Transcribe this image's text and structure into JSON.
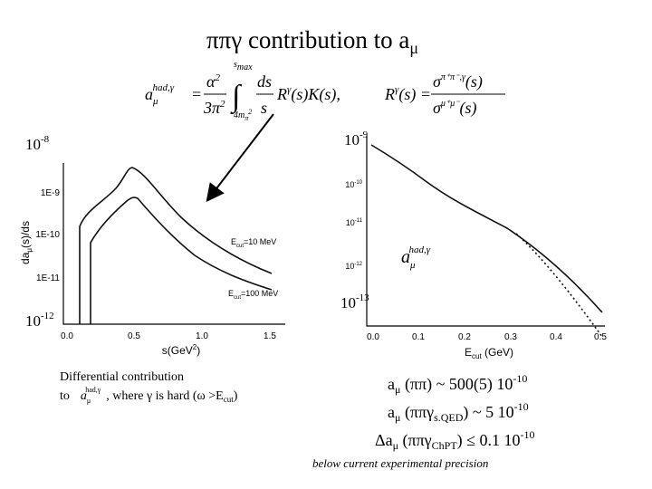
{
  "title": [
    "ππγ contribution to  a",
    "μ"
  ],
  "formula": {
    "lhs": [
      "a",
      "μ",
      "had,γ"
    ],
    "eq1": "=",
    "coef": [
      "α",
      "2",
      "3π",
      "2"
    ],
    "limits": [
      "s",
      "max",
      "4m",
      "π",
      "2"
    ],
    "integrand": [
      "ds",
      "s",
      "R",
      "γ",
      "(s)K(s),"
    ],
    "rhs": [
      "R",
      "γ",
      "(s) =",
      "σ",
      "π⁺π⁻,γ",
      "(s)",
      "σ",
      "μ⁺μ⁻",
      "(s)"
    ]
  },
  "left_plot": {
    "top_label": [
      "10",
      "-8"
    ],
    "bottom_label": [
      "10",
      "-12"
    ],
    "y_label": "da",
    "y_label_sub": "μ",
    "y_label_rest": "(s)/ds",
    "yticks": [
      "1E-9",
      "1E-10",
      "1E-11"
    ],
    "xticks": [
      "0.0",
      "0.5",
      "1.0",
      "1.5"
    ],
    "x_label": [
      "s(GeV",
      "2",
      ")"
    ],
    "legend": [
      [
        "E",
        "cut",
        "=10 MeV"
      ],
      [
        "E",
        "cut",
        "=100 MeV"
      ]
    ]
  },
  "right_plot": {
    "top_label": [
      "10",
      "-9"
    ],
    "bottom_label": [
      "10",
      "-13"
    ],
    "yticks": [
      [
        "10",
        "-10"
      ],
      [
        "10",
        "-11"
      ],
      [
        "10",
        "-12"
      ]
    ],
    "xticks": [
      "0.0",
      "0.1",
      "0.2",
      "0.3",
      "0.4",
      "0.5"
    ],
    "x_label": [
      "E",
      "cut",
      " (GeV)"
    ],
    "inset": [
      "a",
      "μ",
      "had,γ"
    ]
  },
  "caption": {
    "line1": "Differential contribution",
    "line2": [
      "to",
      "a",
      "μ",
      "had,γ",
      ", where γ is hard (ω >E",
      "cut",
      ")"
    ]
  },
  "results": [
    [
      "a",
      "μ",
      " (ππ) ~ 500(5) 10",
      "-10"
    ],
    [
      "a",
      "μ",
      " (ππγ",
      "s.QED",
      ") ~ 5 10",
      "-10"
    ],
    [
      "Δa",
      "μ",
      " (ππγ",
      "ChPT",
      ") ≤ 0.1 10",
      "-10"
    ]
  ],
  "footnote": "below current experimental precision"
}
